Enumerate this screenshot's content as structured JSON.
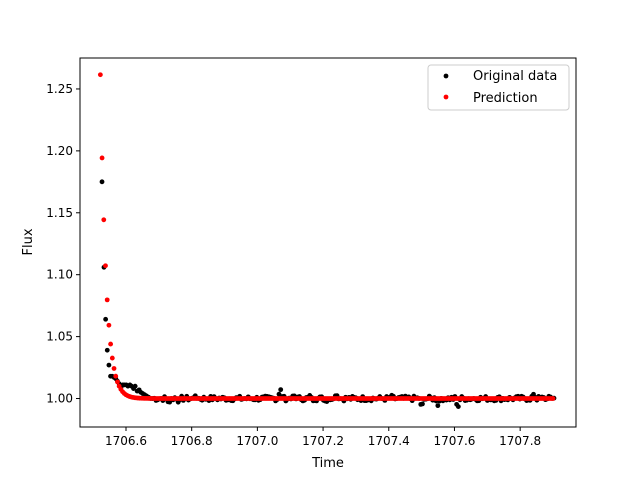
{
  "chart_data": {
    "type": "scatter",
    "title": "",
    "xlabel": "Time",
    "ylabel": "Flux",
    "xlim": [
      1706.46,
      1707.97
    ],
    "ylim": [
      0.977,
      1.275
    ],
    "x_ticks": [
      "1706.6",
      "1706.8",
      "1707.0",
      "1707.2",
      "1707.4",
      "1707.6",
      "1707.8"
    ],
    "x_tick_values": [
      1706.6,
      1706.8,
      1707.0,
      1707.2,
      1707.4,
      1707.6,
      1707.8
    ],
    "y_ticks": [
      "1.00",
      "1.05",
      "1.10",
      "1.15",
      "1.20",
      "1.25"
    ],
    "y_tick_values": [
      1.0,
      1.05,
      1.1,
      1.15,
      1.2,
      1.25
    ],
    "grid": false,
    "legend_position": "top-right",
    "series": [
      {
        "name": "Original data",
        "color": "#000000",
        "decay_points": [
          [
            1706.527,
            1.175
          ],
          [
            1706.533,
            1.106
          ],
          [
            1706.538,
            1.064
          ],
          [
            1706.543,
            1.039
          ],
          [
            1706.548,
            1.027
          ],
          [
            1706.553,
            1.018
          ],
          [
            1706.558,
            1.018
          ],
          [
            1706.564,
            1.017
          ],
          [
            1706.569,
            1.016
          ],
          [
            1706.574,
            1.014
          ],
          [
            1706.579,
            1.012
          ],
          [
            1706.585,
            1.009
          ],
          [
            1706.59,
            1.011
          ],
          [
            1706.595,
            1.011
          ],
          [
            1706.601,
            1.011
          ],
          [
            1706.606,
            1.01
          ],
          [
            1706.612,
            1.011
          ],
          [
            1706.617,
            1.01
          ],
          [
            1706.623,
            1.008
          ],
          [
            1706.628,
            1.01
          ],
          [
            1706.634,
            1.006
          ],
          [
            1706.64,
            1.007
          ],
          [
            1706.645,
            1.005
          ],
          [
            1706.651,
            1.004
          ],
          [
            1706.657,
            1.003
          ],
          [
            1706.663,
            1.002
          ],
          [
            1706.669,
            1.001
          ],
          [
            1706.675,
            1.0
          ]
        ],
        "baseline": {
          "x_start": 1706.681,
          "x_end": 1707.905,
          "step": 0.0052,
          "base": 1.0,
          "noise_amplitude": 0.002,
          "features": [
            [
              1706.73,
              -0.004
            ],
            [
              1706.76,
              -0.003
            ],
            [
              1706.81,
              0.002
            ],
            [
              1707.07,
              0.008
            ],
            [
              1707.11,
              0.003
            ],
            [
              1707.16,
              0.003
            ],
            [
              1707.21,
              -0.003
            ],
            [
              1707.24,
              0.004
            ],
            [
              1707.41,
              0.003
            ],
            [
              1707.5,
              -0.007
            ],
            [
              1707.55,
              -0.006
            ],
            [
              1707.61,
              -0.008
            ],
            [
              1707.84,
              0.004
            ],
            [
              1707.89,
              0.002
            ]
          ]
        }
      },
      {
        "name": "Prediction",
        "color": "#ff0000",
        "model": {
          "x_start": 1706.522,
          "x_end": 1707.905,
          "step": 0.0052,
          "base": 1.0,
          "amplitude": 0.2615,
          "tau": 0.0175
        }
      }
    ]
  }
}
